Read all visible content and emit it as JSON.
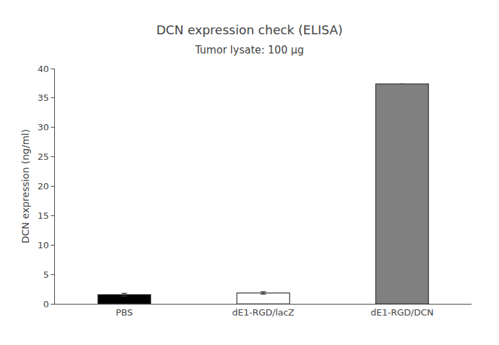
{
  "chart_data": {
    "type": "bar",
    "title": "DCN expression check (ELISA)",
    "subtitle": "Tumor lysate: 100 μg",
    "categories": [
      "PBS",
      "dE1-RGD/lacZ",
      "dE1-RGD/DCN"
    ],
    "values": [
      1.55,
      1.85,
      37.4
    ],
    "errors": [
      0.25,
      0.2,
      0.0
    ],
    "colors": [
      "#000000",
      "#ffffff",
      "#808080"
    ],
    "ylabel": "DCN expression (ng/ml)",
    "ylim": [
      0,
      40
    ],
    "yticks": [
      0,
      5,
      10,
      15,
      20,
      25,
      30,
      35,
      40
    ],
    "grid": false
  }
}
